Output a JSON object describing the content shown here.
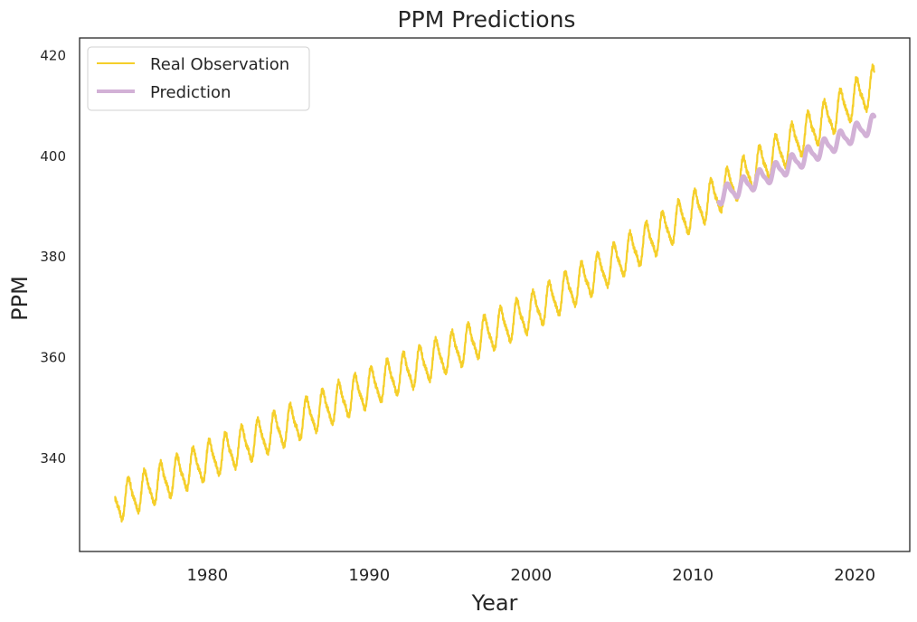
{
  "chart_data": {
    "type": "line",
    "title": "PPM Predictions",
    "xlabel": "Year",
    "ylabel": "PPM",
    "xlim": [
      1972.1,
      2023.4
    ],
    "ylim": [
      321.5,
      423.5
    ],
    "xticks": [
      1980,
      1990,
      2000,
      2010,
      2020
    ],
    "yticks": [
      340,
      360,
      380,
      400,
      420
    ],
    "grid": false,
    "legend_position": "top-left",
    "series": [
      {
        "name": "Real Observation",
        "color": "#f5cf2a",
        "x_start": 1974.3,
        "x_end": 2021.2,
        "note_shape": "seasonal",
        "seasonal_amplitude": 3.4,
        "points": [
          [
            1974.3,
            331.0
          ],
          [
            1980,
            339.5
          ],
          [
            1985,
            346.5
          ],
          [
            1990,
            354.0
          ],
          [
            1995,
            361.0
          ],
          [
            2000,
            369.0
          ],
          [
            2005,
            378.5
          ],
          [
            2010,
            389.0
          ],
          [
            2015,
            400.0
          ],
          [
            2021.2,
            414.0
          ]
        ]
      },
      {
        "name": "Prediction",
        "color": "#d2b1d6",
        "x_start": 2011.6,
        "x_end": 2021.2,
        "seasonal_amplitude": 1.6,
        "points": [
          [
            2011.6,
            392.0
          ],
          [
            2015,
            396.8
          ],
          [
            2018,
            401.5
          ],
          [
            2021.2,
            406.5
          ]
        ]
      }
    ]
  }
}
